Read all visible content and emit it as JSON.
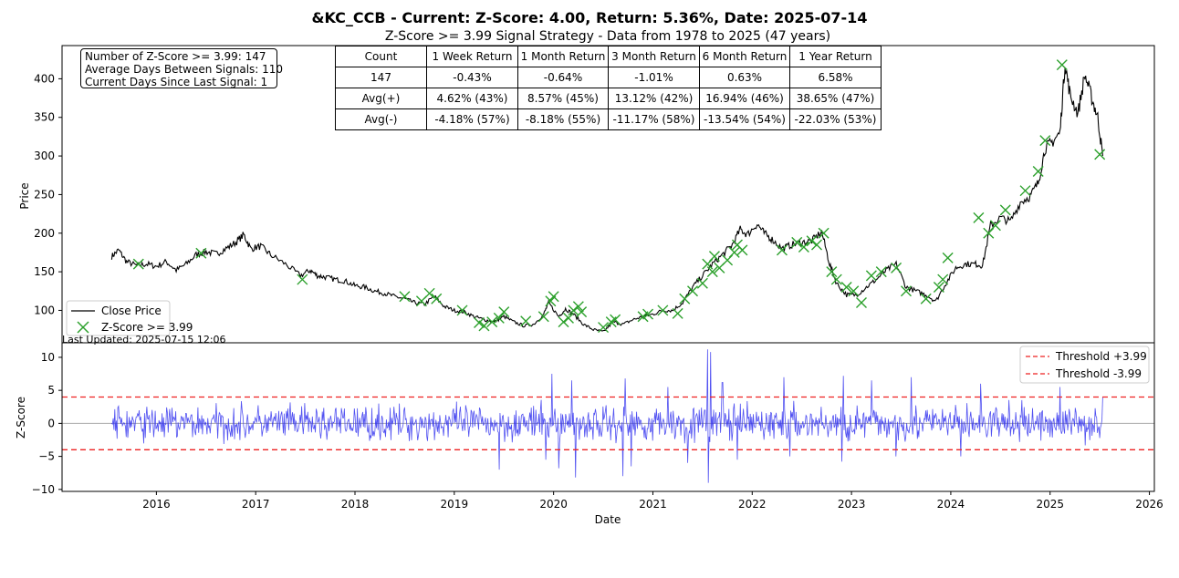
{
  "title": "&KC_CCB - Current: Z-Score: 4.00, Return: 5.36%, Date: 2025-07-14",
  "subtitle": "Z-Score >= 3.99 Signal Strategy - Data from 1978 to 2025 (47 years)",
  "info_box": {
    "line1": "Number of Z-Score >= 3.99: 147",
    "line2": "Average Days Between Signals: 110",
    "line3": "Current Days Since Last Signal: 1"
  },
  "stats_table": {
    "headers": [
      "Count",
      "1 Week Return",
      "1 Month Return",
      "3 Month Return",
      "6 Month Return",
      "1 Year Return"
    ],
    "rows": [
      [
        "147",
        "-0.43%",
        "-0.64%",
        "-1.01%",
        "0.63%",
        "6.58%"
      ],
      [
        "Avg(+)",
        "4.62% (43%)",
        "8.57% (45%)",
        "13.12% (42%)",
        "16.94% (46%)",
        "38.65% (47%)"
      ],
      [
        "Avg(-)",
        "-4.18% (57%)",
        "-8.18% (55%)",
        "-11.17% (58%)",
        "-13.54% (54%)",
        "-22.03% (53%)"
      ]
    ]
  },
  "last_updated": "Last Updated: 2025-07-15 12:06",
  "colors": {
    "price": "#000000",
    "signal": "#2ca02c",
    "zscore": "#3333ee",
    "threshold": "#ee2222",
    "zero": "#aaaaaa"
  },
  "chart_data": [
    {
      "type": "line",
      "ylabel": "Price",
      "xlim": [
        2015.05,
        2026.05
      ],
      "ylim": [
        58,
        443
      ],
      "yticks": [
        100,
        150,
        200,
        250,
        300,
        350,
        400
      ],
      "legend": {
        "placement": "lower-left",
        "entries": [
          "Close Price",
          "Z-Score >= 3.99"
        ]
      },
      "series": [
        {
          "name": "Close Price",
          "x": [
            2015.55,
            2015.62,
            2015.7,
            2015.8,
            2015.9,
            2016.0,
            2016.1,
            2016.2,
            2016.3,
            2016.4,
            2016.5,
            2016.6,
            2016.7,
            2016.8,
            2016.88,
            2016.95,
            2017.05,
            2017.15,
            2017.3,
            2017.45,
            2017.55,
            2017.62,
            2017.7,
            2017.8,
            2017.9,
            2018.0,
            2018.1,
            2018.2,
            2018.3,
            2018.4,
            2018.5,
            2018.6,
            2018.7,
            2018.8,
            2018.9,
            2019.0,
            2019.1,
            2019.2,
            2019.3,
            2019.4,
            2019.5,
            2019.6,
            2019.7,
            2019.8,
            2019.9,
            2019.95,
            2020.05,
            2020.12,
            2020.2,
            2020.3,
            2020.4,
            2020.5,
            2020.6,
            2020.7,
            2020.8,
            2020.9,
            2021.0,
            2021.1,
            2021.2,
            2021.3,
            2021.4,
            2021.5,
            2021.6,
            2021.7,
            2021.8,
            2021.88,
            2021.95,
            2022.05,
            2022.12,
            2022.2,
            2022.3,
            2022.4,
            2022.5,
            2022.6,
            2022.7,
            2022.78,
            2022.85,
            2022.95,
            2023.05,
            2023.15,
            2023.25,
            2023.35,
            2023.45,
            2023.55,
            2023.65,
            2023.75,
            2023.85,
            2023.95,
            2024.05,
            2024.15,
            2024.25,
            2024.32,
            2024.4,
            2024.5,
            2024.6,
            2024.7,
            2024.8,
            2024.88,
            2024.95,
            2025.02,
            2025.1,
            2025.15,
            2025.2,
            2025.28,
            2025.35,
            2025.42,
            2025.48,
            2025.53
          ],
          "values": [
            170,
            178,
            163,
            158,
            160,
            157,
            163,
            152,
            160,
            172,
            176,
            173,
            180,
            188,
            198,
            180,
            183,
            172,
            160,
            145,
            152,
            145,
            143,
            140,
            138,
            132,
            130,
            125,
            122,
            118,
            115,
            110,
            108,
            118,
            105,
            100,
            98,
            92,
            88,
            85,
            92,
            85,
            80,
            82,
            95,
            110,
            92,
            102,
            95,
            82,
            75,
            72,
            85,
            82,
            88,
            92,
            95,
            100,
            100,
            110,
            130,
            145,
            160,
            172,
            185,
            205,
            198,
            212,
            200,
            192,
            180,
            185,
            188,
            190,
            202,
            160,
            135,
            120,
            120,
            130,
            140,
            152,
            160,
            130,
            125,
            120,
            112,
            135,
            155,
            160,
            160,
            158,
            210,
            220,
            215,
            240,
            248,
            265,
            310,
            318,
            330,
            420,
            380,
            355,
            405,
            375,
            350,
            300
          ]
        },
        {
          "name": "Z-Score >= 3.99",
          "x": [
            2015.82,
            2016.45,
            2017.47,
            2018.5,
            2018.67,
            2018.75,
            2018.82,
            2019.08,
            2019.25,
            2019.3,
            2019.38,
            2019.45,
            2019.5,
            2019.72,
            2019.9,
            2019.97,
            2020.0,
            2020.1,
            2020.15,
            2020.2,
            2020.25,
            2020.28,
            2020.5,
            2020.58,
            2020.62,
            2020.9,
            2020.95,
            2021.1,
            2021.25,
            2021.32,
            2021.4,
            2021.5,
            2021.55,
            2021.6,
            2021.62,
            2021.67,
            2021.75,
            2021.82,
            2021.85,
            2021.9,
            2022.3,
            2022.45,
            2022.52,
            2022.6,
            2022.65,
            2022.72,
            2022.8,
            2022.85,
            2022.95,
            2023.02,
            2023.1,
            2023.2,
            2023.3,
            2023.45,
            2023.55,
            2023.75,
            2023.88,
            2023.92,
            2023.97,
            2024.28,
            2024.38,
            2024.45,
            2024.55,
            2024.75,
            2024.88,
            2024.95,
            2025.12,
            2025.5
          ],
          "values": [
            160,
            174,
            140,
            118,
            112,
            122,
            115,
            100,
            84,
            80,
            85,
            90,
            98,
            86,
            92,
            112,
            118,
            85,
            90,
            100,
            105,
            98,
            78,
            85,
            88,
            92,
            95,
            100,
            96,
            115,
            125,
            135,
            160,
            150,
            170,
            155,
            165,
            175,
            185,
            178,
            178,
            188,
            182,
            190,
            185,
            200,
            150,
            140,
            130,
            125,
            110,
            145,
            150,
            155,
            125,
            115,
            130,
            140,
            168,
            220,
            200,
            210,
            230,
            255,
            280,
            320,
            418,
            302
          ]
        }
      ]
    },
    {
      "type": "line",
      "xlabel": "Date",
      "ylabel": "Z-Score",
      "xlim": [
        2015.05,
        2026.05
      ],
      "ylim": [
        -10.3,
        12.2
      ],
      "yticks": [
        -10,
        -5,
        0,
        5,
        10
      ],
      "xticks": [
        "2016",
        "2017",
        "2018",
        "2019",
        "2020",
        "2021",
        "2022",
        "2023",
        "2024",
        "2025",
        "2026"
      ],
      "legend": {
        "placement": "top-right",
        "entries": [
          "Threshold +3.99",
          "Threshold -3.99"
        ]
      },
      "thresholds": [
        3.99,
        -3.99,
        0
      ],
      "series": [
        {
          "name": "Z-Score",
          "x_start": 2015.55,
          "x_end": 2025.53,
          "points": 1300,
          "typical_range": [
            -4.5,
            4.5
          ],
          "max": 11.2,
          "min": -9.0,
          "spikes": [
            [
              2019.45,
              -7.0
            ],
            [
              2019.92,
              -5.5
            ],
            [
              2019.98,
              7.5
            ],
            [
              2020.05,
              -6.8
            ],
            [
              2020.18,
              6.5
            ],
            [
              2020.22,
              -8.2
            ],
            [
              2020.72,
              6.8
            ],
            [
              2020.7,
              -8.0
            ],
            [
              2020.78,
              -6.5
            ],
            [
              2021.15,
              5.5
            ],
            [
              2021.35,
              -6.0
            ],
            [
              2021.55,
              11.2
            ],
            [
              2021.56,
              -9.0
            ],
            [
              2021.58,
              10.8
            ],
            [
              2021.7,
              6.2
            ],
            [
              2021.85,
              -5.5
            ],
            [
              2022.32,
              7.0
            ],
            [
              2022.38,
              -5.0
            ],
            [
              2022.9,
              -5.8
            ],
            [
              2022.92,
              7.2
            ],
            [
              2023.2,
              6.5
            ],
            [
              2023.45,
              -5.0
            ],
            [
              2023.6,
              7.0
            ],
            [
              2024.1,
              -5.0
            ],
            [
              2024.3,
              6.0
            ],
            [
              2025.1,
              5.5
            ],
            [
              2025.53,
              4.0
            ]
          ]
        },
        {
          "name": "Threshold +3.99",
          "value": 3.99
        },
        {
          "name": "Threshold -3.99",
          "value": -3.99
        }
      ]
    }
  ]
}
